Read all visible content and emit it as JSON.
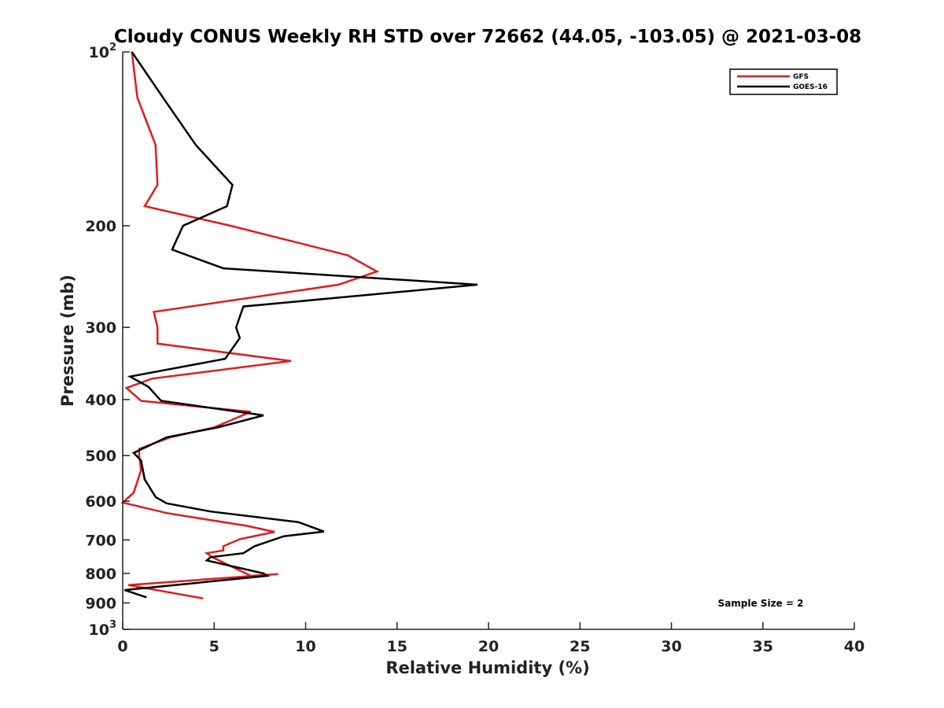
{
  "chart_data": {
    "type": "line",
    "title": "Cloudy CONUS Weekly RH STD over 72662 (44.05, -103.05) @ 2021-03-08",
    "xlabel": "Relative Humidity (%)",
    "ylabel": "Pressure (mb)",
    "xlim": [
      0,
      40
    ],
    "ylim": [
      100,
      1000
    ],
    "y_scale": "log",
    "y_inverted": true,
    "grid": false,
    "legend_position": "top-right",
    "x_ticks": [
      "0",
      "5",
      "10",
      "15",
      "20",
      "25",
      "30",
      "35",
      "40"
    ],
    "x_tick_values": [
      0,
      5,
      10,
      15,
      20,
      25,
      30,
      35,
      40
    ],
    "y_ticks": [
      {
        "base": "10",
        "exp": "2",
        "value": 100
      },
      {
        "label": "200",
        "value": 200
      },
      {
        "label": "300",
        "value": 300
      },
      {
        "label": "400",
        "value": 400
      },
      {
        "label": "500",
        "value": 500
      },
      {
        "label": "600",
        "value": 600
      },
      {
        "label": "700",
        "value": 700
      },
      {
        "label": "800",
        "value": 800
      },
      {
        "label": "900",
        "value": 900
      },
      {
        "base": "10",
        "exp": "3",
        "value": 1000
      }
    ],
    "annotation": "Sample Size = 2",
    "series": [
      {
        "name": "GFS",
        "color": "#e31a1c",
        "points": [
          [
            0.5,
            100
          ],
          [
            0.8,
            120
          ],
          [
            1.8,
            145
          ],
          [
            1.9,
            170
          ],
          [
            1.2,
            185
          ],
          [
            5.9,
            200
          ],
          [
            12.3,
            225
          ],
          [
            13.9,
            240
          ],
          [
            11.8,
            253
          ],
          [
            1.7,
            282
          ],
          [
            1.9,
            300
          ],
          [
            1.9,
            320
          ],
          [
            9.2,
            343
          ],
          [
            1.6,
            368
          ],
          [
            0.2,
            382
          ],
          [
            1.0,
            402
          ],
          [
            7.0,
            420
          ],
          [
            5.0,
            447
          ],
          [
            2.6,
            465
          ],
          [
            0.9,
            487
          ],
          [
            0.9,
            500
          ],
          [
            1.0,
            530
          ],
          [
            0.6,
            580
          ],
          [
            0.0,
            603
          ],
          [
            2.4,
            629
          ],
          [
            6.8,
            662
          ],
          [
            8.3,
            678
          ],
          [
            6.4,
            698
          ],
          [
            5.5,
            718
          ],
          [
            5.5,
            730
          ],
          [
            4.6,
            738
          ],
          [
            4.9,
            750
          ],
          [
            7.0,
            808
          ],
          [
            8.5,
            802
          ],
          [
            0.3,
            838
          ],
          [
            4.4,
            884
          ]
        ]
      },
      {
        "name": "GOES-16",
        "color": "#000000",
        "points": [
          [
            0.5,
            100
          ],
          [
            2.2,
            120
          ],
          [
            4.0,
            145
          ],
          [
            6.0,
            170
          ],
          [
            5.7,
            185
          ],
          [
            3.3,
            200
          ],
          [
            2.7,
            220
          ],
          [
            5.5,
            237
          ],
          [
            19.4,
            253
          ],
          [
            6.6,
            276
          ],
          [
            6.2,
            300
          ],
          [
            6.4,
            313
          ],
          [
            5.6,
            340
          ],
          [
            0.4,
            365
          ],
          [
            1.4,
            380
          ],
          [
            2.1,
            402
          ],
          [
            7.7,
            426
          ],
          [
            5.2,
            447
          ],
          [
            2.4,
            465
          ],
          [
            0.6,
            495
          ],
          [
            1.0,
            510
          ],
          [
            1.2,
            550
          ],
          [
            1.8,
            590
          ],
          [
            2.4,
            605
          ],
          [
            4.8,
            625
          ],
          [
            9.6,
            652
          ],
          [
            11.0,
            677
          ],
          [
            8.8,
            690
          ],
          [
            7.2,
            718
          ],
          [
            6.6,
            738
          ],
          [
            4.8,
            750
          ],
          [
            4.6,
            760
          ],
          [
            7.7,
            800
          ],
          [
            7.9,
            808
          ],
          [
            0.1,
            855
          ],
          [
            1.3,
            880
          ]
        ]
      }
    ]
  }
}
